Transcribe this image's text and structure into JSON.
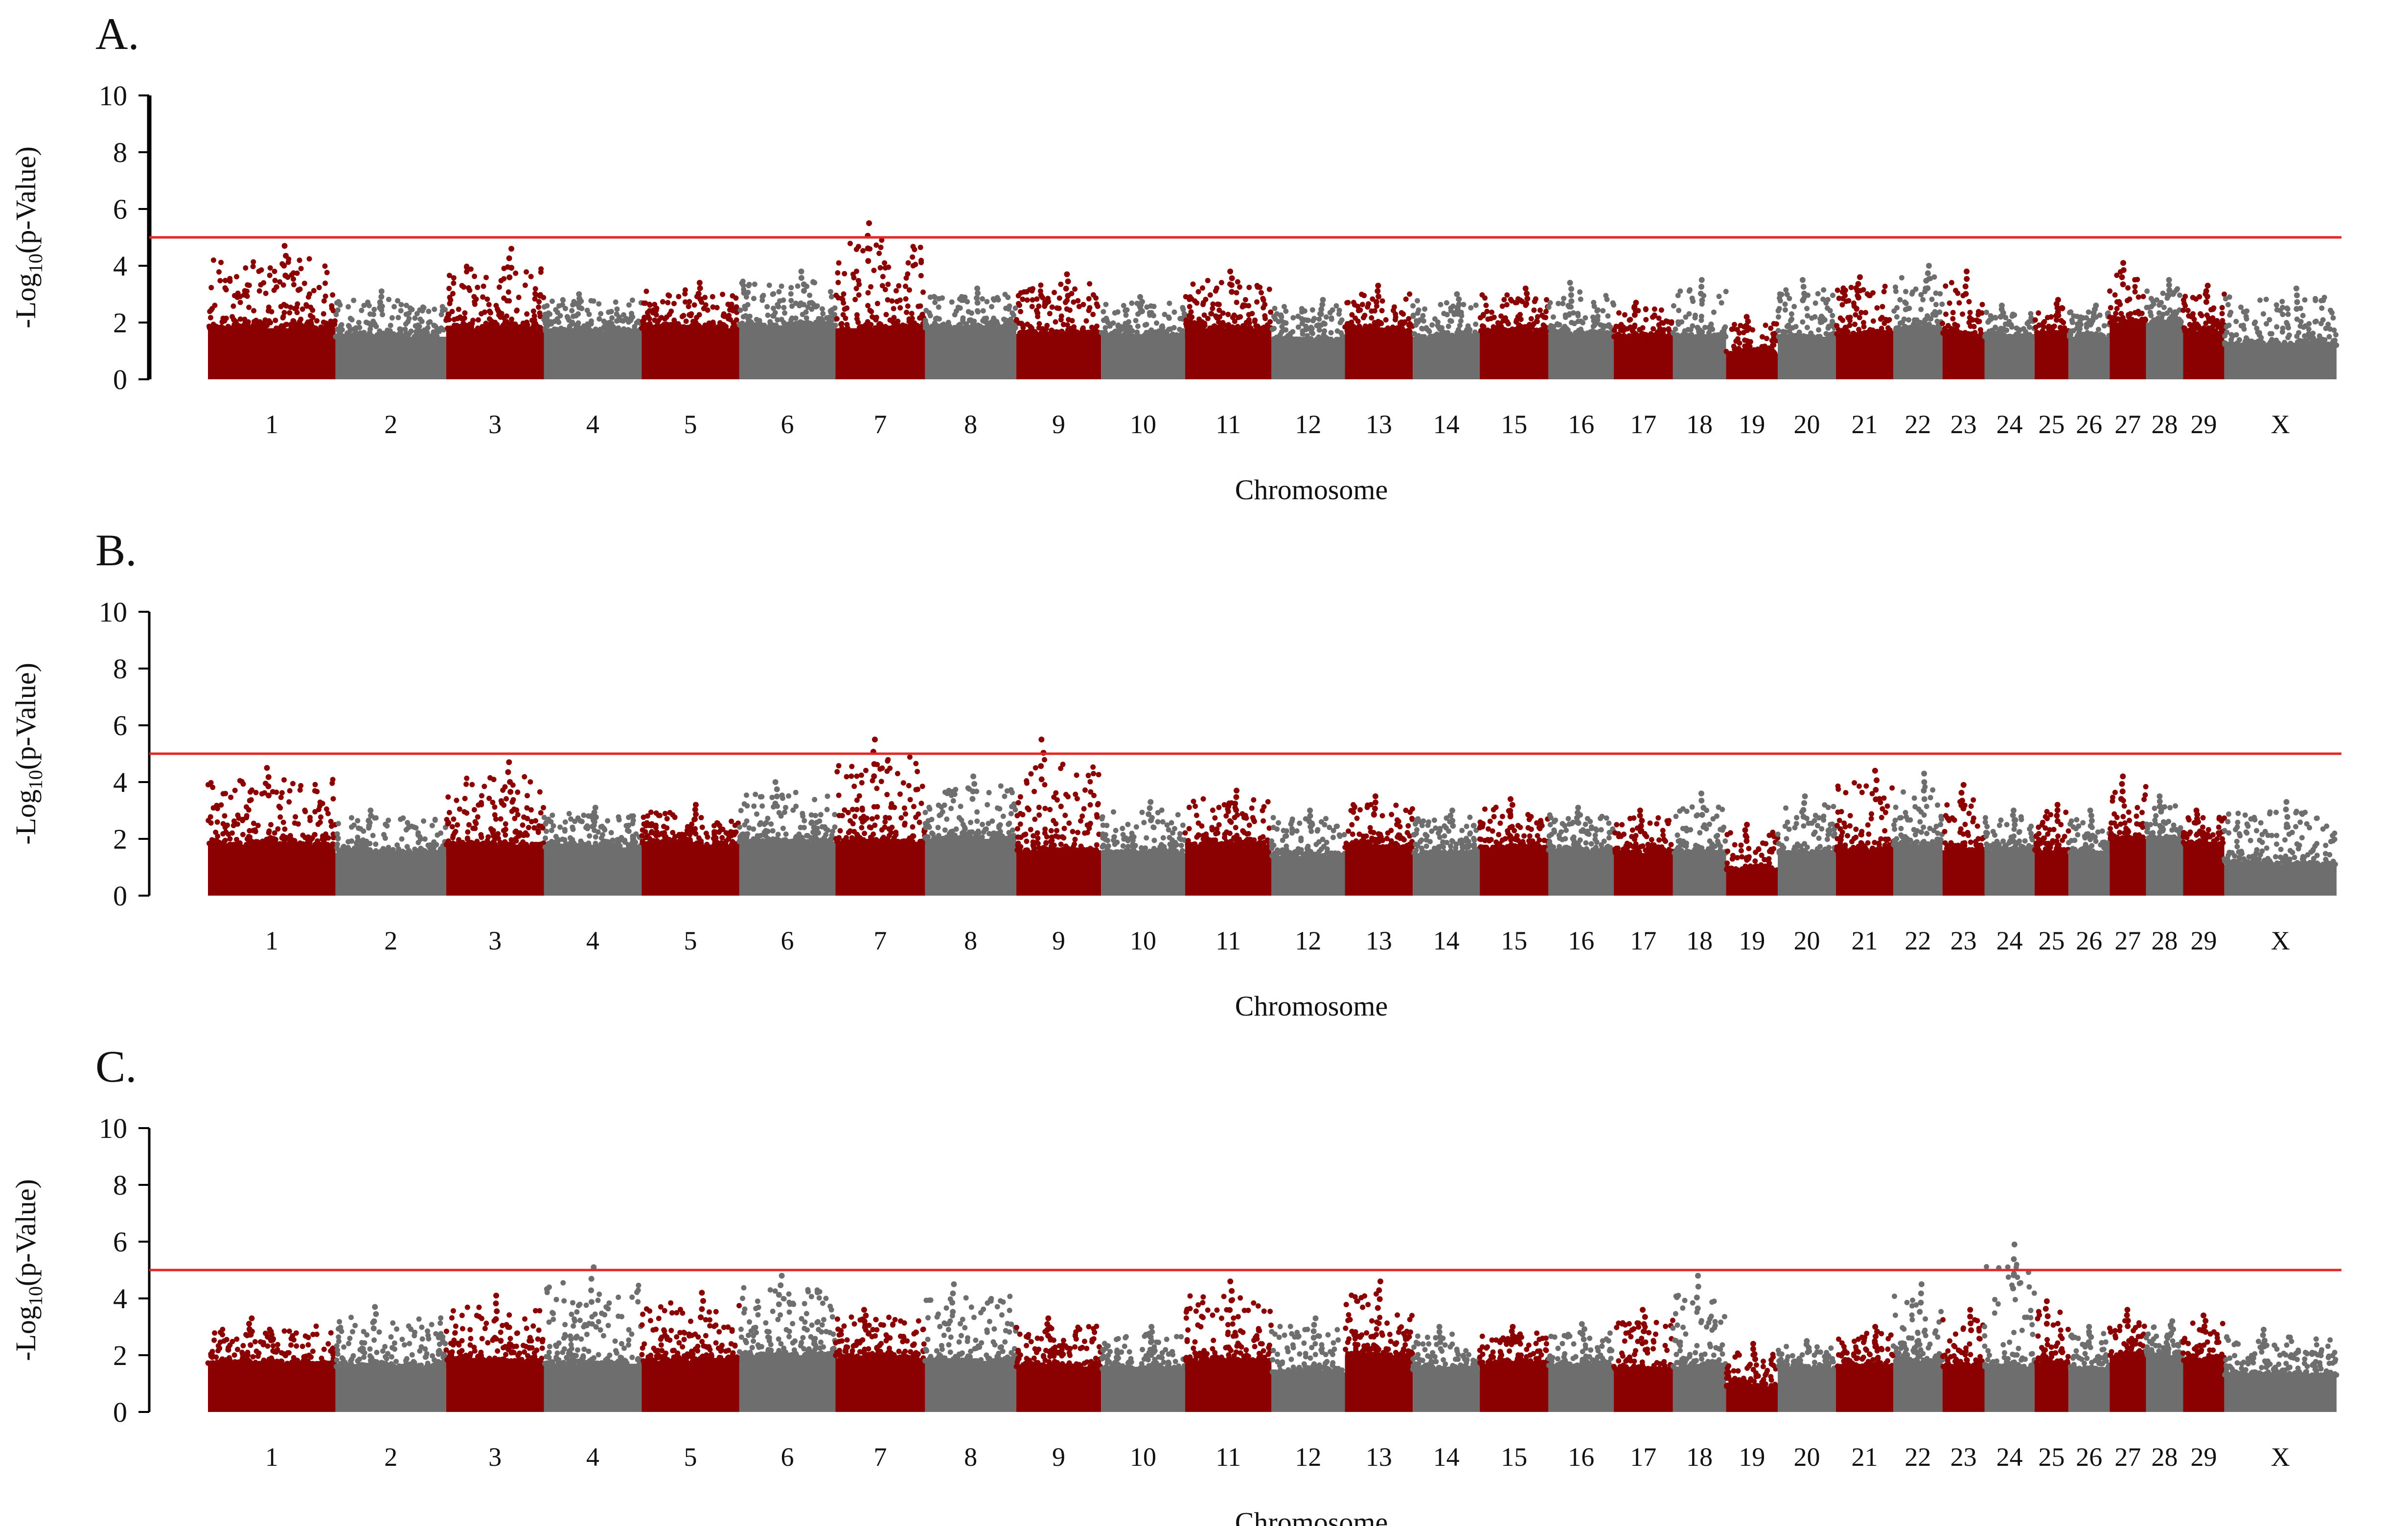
{
  "colors": {
    "odd": "#8b0000",
    "even": "#6e6e6e",
    "threshold": "#e32626",
    "axis": "#000000"
  },
  "chart_data": [
    {
      "type": "scatter",
      "subtype": "manhattan",
      "panel": "A.",
      "xlabel": "Chromosome",
      "ylabel_prefix": "-Log",
      "ylabel_sub": "10",
      "ylabel_suffix": "(p-Value)",
      "ylim": [
        0,
        10
      ],
      "yticks": [
        "0",
        "2",
        "4",
        "6",
        "8",
        "10"
      ],
      "threshold": 5,
      "chromosomes": [
        "1",
        "2",
        "3",
        "4",
        "5",
        "6",
        "7",
        "8",
        "9",
        "10",
        "11",
        "12",
        "13",
        "14",
        "15",
        "16",
        "17",
        "18",
        "19",
        "20",
        "21",
        "22",
        "23",
        "24",
        "25",
        "26",
        "27",
        "28",
        "29",
        "X"
      ],
      "chromosome_peaks": [
        4.7,
        3.1,
        4.6,
        3.0,
        3.4,
        3.8,
        5.5,
        3.2,
        3.7,
        2.9,
        3.8,
        2.8,
        3.3,
        3.0,
        3.2,
        3.4,
        2.7,
        3.5,
        2.2,
        3.5,
        3.6,
        4.0,
        3.8,
        2.6,
        2.8,
        2.6,
        4.1,
        3.5,
        3.3,
        3.2
      ],
      "chromosome_base": [
        1.8,
        1.5,
        1.8,
        1.7,
        1.8,
        1.9,
        1.8,
        1.8,
        1.6,
        1.5,
        1.8,
        1.4,
        1.7,
        1.5,
        1.7,
        1.6,
        1.5,
        1.5,
        0.9,
        1.5,
        1.6,
        1.8,
        1.6,
        1.5,
        1.6,
        1.5,
        2.0,
        2.0,
        1.7,
        1.2
      ]
    },
    {
      "type": "scatter",
      "subtype": "manhattan",
      "panel": "B.",
      "xlabel": "Chromosome",
      "ylabel_prefix": "-Log",
      "ylabel_sub": "10",
      "ylabel_suffix": "(p-Value)",
      "ylim": [
        0,
        10
      ],
      "yticks": [
        "0",
        "2",
        "4",
        "6",
        "8",
        "10"
      ],
      "threshold": 5,
      "chromosomes": [
        "1",
        "2",
        "3",
        "4",
        "5",
        "6",
        "7",
        "8",
        "9",
        "10",
        "11",
        "12",
        "13",
        "14",
        "15",
        "16",
        "17",
        "18",
        "19",
        "20",
        "21",
        "22",
        "23",
        "24",
        "25",
        "26",
        "27",
        "28",
        "29",
        "X"
      ],
      "chromosome_peaks": [
        4.5,
        3.0,
        4.7,
        3.1,
        3.2,
        4.0,
        5.5,
        4.2,
        5.5,
        3.3,
        3.7,
        3.0,
        3.5,
        3.0,
        3.4,
        3.1,
        3.0,
        3.6,
        2.5,
        3.5,
        4.4,
        4.3,
        3.9,
        3.0,
        3.2,
        3.0,
        4.2,
        3.5,
        3.0,
        3.3
      ],
      "chromosome_base": [
        1.8,
        1.5,
        1.8,
        1.7,
        1.8,
        1.9,
        1.9,
        2.0,
        1.6,
        1.5,
        1.8,
        1.4,
        1.7,
        1.5,
        1.7,
        1.6,
        1.5,
        1.5,
        0.9,
        1.5,
        1.6,
        1.8,
        1.6,
        1.6,
        1.6,
        1.5,
        2.0,
        2.0,
        1.8,
        1.1
      ]
    },
    {
      "type": "scatter",
      "subtype": "manhattan",
      "panel": "C.",
      "xlabel": "Chromosome",
      "ylabel_prefix": "-Log",
      "ylabel_sub": "10",
      "ylabel_suffix": "(p-Value)",
      "ylim": [
        0,
        10
      ],
      "yticks": [
        "0",
        "2",
        "4",
        "6",
        "8",
        "10"
      ],
      "threshold": 5,
      "chromosomes": [
        "1",
        "2",
        "3",
        "4",
        "5",
        "6",
        "7",
        "8",
        "9",
        "10",
        "11",
        "12",
        "13",
        "14",
        "15",
        "16",
        "17",
        "18",
        "19",
        "20",
        "21",
        "22",
        "23",
        "24",
        "25",
        "26",
        "27",
        "28",
        "29",
        "X"
      ],
      "chromosome_peaks": [
        3.3,
        3.7,
        4.1,
        5.1,
        4.2,
        4.8,
        3.6,
        4.5,
        3.3,
        3.0,
        4.6,
        3.3,
        4.6,
        3.0,
        3.0,
        3.1,
        3.6,
        4.8,
        2.4,
        2.5,
        3.0,
        4.5,
        3.6,
        5.9,
        3.9,
        3.0,
        3.6,
        3.2,
        3.4,
        2.9
      ],
      "chromosome_base": [
        1.7,
        1.6,
        1.8,
        1.7,
        1.8,
        2.0,
        1.9,
        1.8,
        1.6,
        1.5,
        1.8,
        1.4,
        2.0,
        1.5,
        1.7,
        1.6,
        1.5,
        1.6,
        0.9,
        1.5,
        1.6,
        1.8,
        1.6,
        1.6,
        1.7,
        1.5,
        2.0,
        2.0,
        1.8,
        1.3
      ]
    }
  ]
}
